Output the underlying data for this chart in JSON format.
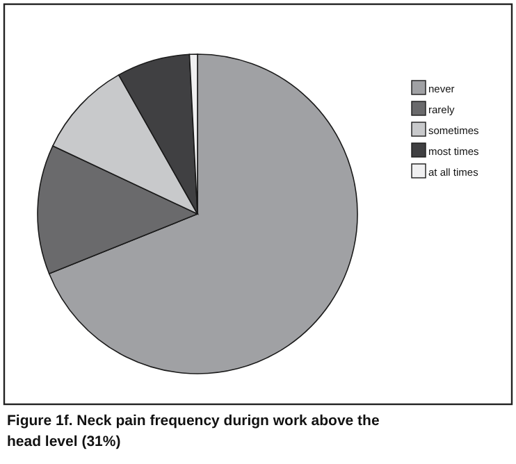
{
  "chart_data": {
    "type": "pie",
    "title": "Figure 1f. Neck pain frequency durign work above the head level (31%)",
    "categories": [
      "never",
      "rarely",
      "sometimes",
      "most times",
      "at all times"
    ],
    "values": [
      68.9,
      13.1,
      9.8,
      7.4,
      0.8
    ],
    "colors": [
      "#a0a1a4",
      "#6a6a6c",
      "#c8c9cb",
      "#404042",
      "#f0f0f1"
    ],
    "legend": "right"
  }
}
